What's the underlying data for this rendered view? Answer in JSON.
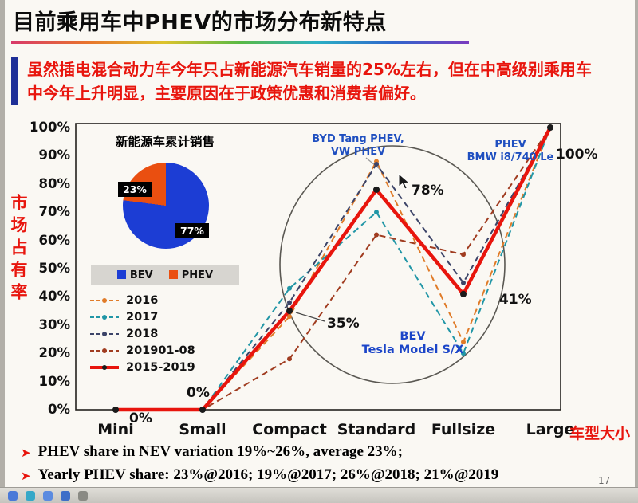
{
  "slide": {
    "title": "目前乘用车中PHEV的市场分布新特点",
    "intro": {
      "line1": "虽然插电混合动力车今年只占新能源汽车销量的25%左右，但在中高级别乘用车",
      "line2": "中今年上升明显，主要原因在于政策优惠和消费者偏好。"
    },
    "page_number": "17"
  },
  "chart_data": {
    "type": "line",
    "title": "",
    "y_axis_label": "市场占有率",
    "x_axis_label": "车型大小",
    "categories": [
      "Mini",
      "Small",
      "Compact",
      "Standard",
      "Fullsize",
      "Large"
    ],
    "y_ticks": [
      "100%",
      "90%",
      "80%",
      "70%",
      "60%",
      "50%",
      "40%",
      "30%",
      "20%",
      "10%",
      "0%"
    ],
    "ylim": [
      0,
      100
    ],
    "grid": false,
    "legend_position": "inside-left",
    "series": [
      {
        "name": "2016",
        "color": "#e07b28",
        "style": "dashed",
        "values": [
          0,
          0,
          33,
          88,
          24,
          100
        ]
      },
      {
        "name": "2017",
        "color": "#2196a6",
        "style": "dashed",
        "values": [
          0,
          0,
          43,
          70,
          20,
          100
        ]
      },
      {
        "name": "2018",
        "color": "#3c4468",
        "style": "dashed",
        "values": [
          0,
          0,
          38,
          87,
          45,
          100
        ]
      },
      {
        "name": "201901-08",
        "color": "#a03c20",
        "style": "dashed",
        "values": [
          0,
          0,
          18,
          62,
          55,
          100
        ]
      },
      {
        "name": "2015-2019",
        "color": "#e8150d",
        "style": "solid",
        "values": [
          0,
          0,
          35,
          78,
          41,
          100
        ]
      }
    ],
    "point_labels": [
      "0%",
      "0%",
      "35%",
      "78%",
      "41%",
      "100%"
    ],
    "annotations": [
      {
        "name": "byd",
        "line1": "BYD Tang PHEV,",
        "line2": "VW PHEV"
      },
      {
        "name": "bmw",
        "line1": "PHEV",
        "line2": "BMW i8/740 Le"
      },
      {
        "name": "bev",
        "line1": "BEV",
        "line2": "Tesla Model S/X"
      }
    ]
  },
  "pie": {
    "title": "新能源车累计销售",
    "slices": [
      {
        "label": "BEV",
        "value": 77,
        "color": "#1c3dd4",
        "data_label": "77%"
      },
      {
        "label": "PHEV",
        "value": 23,
        "color": "#ea4f10",
        "data_label": "23%"
      }
    ]
  },
  "footnotes": [
    "PHEV share in NEV variation 19%~26%, average 23%;",
    "Yearly PHEV share: 23%@2016; 19%@2017; 26%@2018; 21%@2019"
  ],
  "toolbar_icons": [
    "back-icon",
    "list-icon",
    "share-icon",
    "bookmark-icon",
    "more-icon"
  ]
}
